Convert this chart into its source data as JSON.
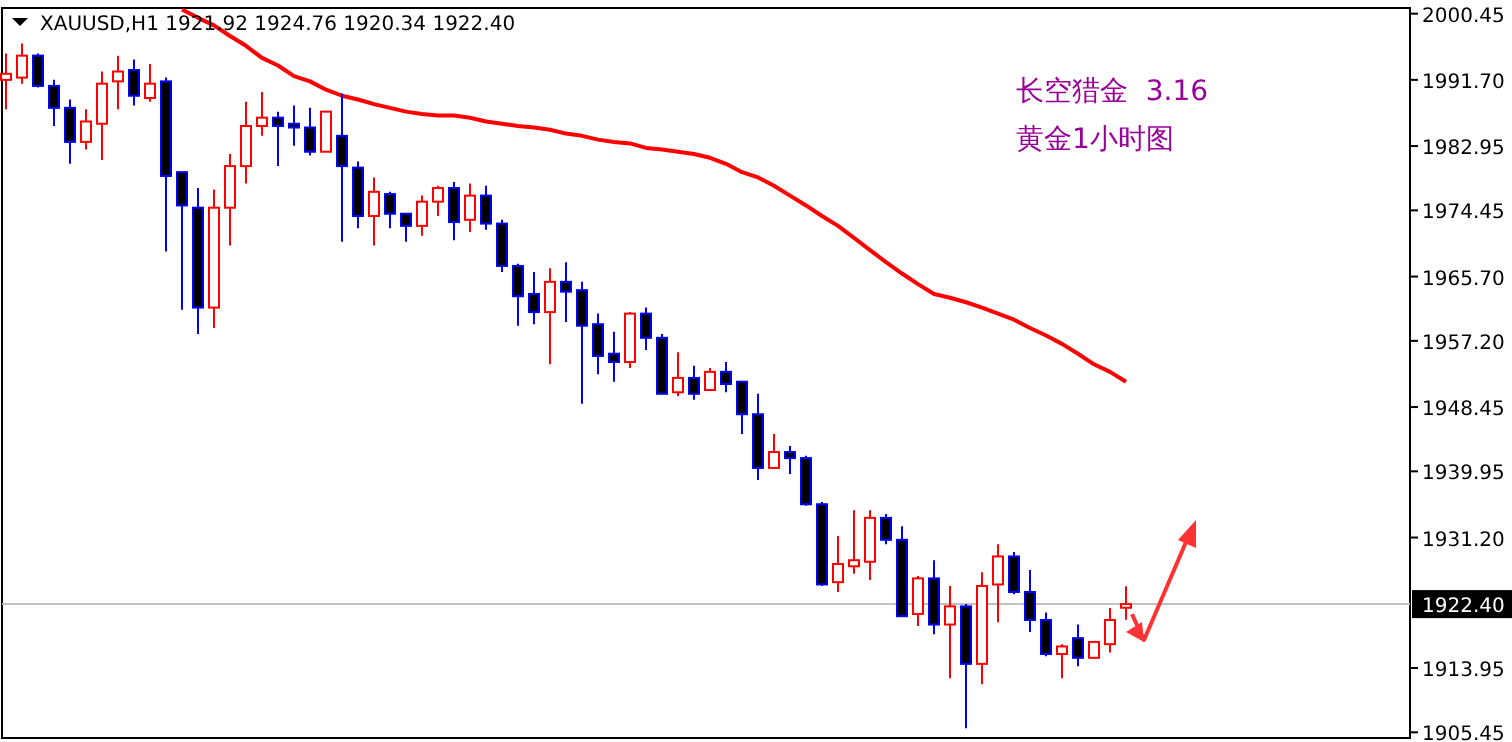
{
  "chart_data": {
    "type": "candlestick",
    "title": "XAUUSD,H1  1921.92 1924.76 1920.34 1922.40",
    "annotations": [
      "长空猎金  3.16",
      "黄金1小时图"
    ],
    "categories": [
      null,
      null,
      null,
      null,
      null,
      null,
      null,
      null,
      null,
      null,
      null,
      null,
      null,
      null,
      null,
      null,
      null,
      null,
      null,
      null,
      null,
      null,
      null,
      null,
      null,
      null,
      null,
      null,
      null,
      null,
      null,
      null,
      null,
      null,
      null,
      null,
      null,
      null,
      null,
      null,
      null,
      null,
      null,
      null,
      null,
      null,
      null,
      null,
      null,
      null,
      null,
      null,
      null,
      null,
      null,
      null,
      null,
      null,
      null,
      null,
      null,
      null,
      null,
      null,
      null,
      null,
      null,
      null,
      null,
      null,
      null
    ],
    "ohlc": [
      [
        1991.7,
        1995.2,
        1987.8,
        1992.5
      ],
      [
        1992.0,
        1996.5,
        1991.2,
        1994.9
      ],
      [
        1994.9,
        1995.2,
        1990.7,
        1990.9
      ],
      [
        1990.9,
        1991.7,
        1985.6,
        1988.0
      ],
      [
        1988.0,
        1989.1,
        1980.6,
        1983.5
      ],
      [
        1983.5,
        1987.8,
        1982.5,
        1986.2
      ],
      [
        1985.9,
        1992.8,
        1981.1,
        1991.2
      ],
      [
        1991.5,
        1994.9,
        1987.8,
        1992.8
      ],
      [
        1993.0,
        1994.4,
        1988.3,
        1989.6
      ],
      [
        1989.3,
        1993.8,
        1988.8,
        1991.2
      ],
      [
        1991.5,
        1992.0,
        1969.0,
        1979.0
      ],
      [
        1979.5,
        1979.5,
        1961.3,
        1975.1
      ],
      [
        1974.8,
        1977.4,
        1958.1,
        1961.6
      ],
      [
        1961.6,
        1977.2,
        1958.9,
        1974.8
      ],
      [
        1974.8,
        1981.9,
        1969.8,
        1980.3
      ],
      [
        1980.3,
        1988.8,
        1978.0,
        1985.6
      ],
      [
        1985.6,
        1990.1,
        1984.3,
        1986.7
      ],
      [
        1986.7,
        1987.5,
        1980.3,
        1985.6
      ],
      [
        1985.9,
        1988.3,
        1983.0,
        1985.4
      ],
      [
        1985.4,
        1988.0,
        1981.7,
        1982.2
      ],
      [
        1982.2,
        1987.5,
        1982.2,
        1987.5
      ],
      [
        1984.3,
        1989.9,
        1970.3,
        1980.3
      ],
      [
        1980.1,
        1980.9,
        1972.1,
        1973.7
      ],
      [
        1973.7,
        1978.8,
        1969.8,
        1976.9
      ],
      [
        1976.6,
        1976.9,
        1972.1,
        1974.0
      ],
      [
        1974.0,
        1974.0,
        1970.3,
        1972.4
      ],
      [
        1972.4,
        1976.4,
        1971.1,
        1975.6
      ],
      [
        1975.6,
        1977.7,
        1973.7,
        1977.4
      ],
      [
        1977.4,
        1978.2,
        1970.5,
        1972.9
      ],
      [
        1973.2,
        1978.0,
        1971.6,
        1976.4
      ],
      [
        1976.4,
        1977.7,
        1971.9,
        1972.7
      ],
      [
        1972.7,
        1973.2,
        1966.3,
        1967.1
      ],
      [
        1967.1,
        1967.4,
        1959.2,
        1963.1
      ],
      [
        1963.4,
        1966.3,
        1959.4,
        1961.0
      ],
      [
        1961.0,
        1966.8,
        1954.1,
        1965.0
      ],
      [
        1965.0,
        1967.6,
        1959.7,
        1963.7
      ],
      [
        1963.9,
        1965.0,
        1948.9,
        1959.2
      ],
      [
        1959.4,
        1960.8,
        1952.8,
        1955.2
      ],
      [
        1955.5,
        1958.4,
        1951.8,
        1954.4
      ],
      [
        1954.4,
        1961.0,
        1953.6,
        1960.8
      ],
      [
        1960.8,
        1961.6,
        1956.0,
        1957.6
      ],
      [
        1957.6,
        1958.1,
        1950.2,
        1950.2
      ],
      [
        1950.4,
        1955.7,
        1949.9,
        1952.3
      ],
      [
        1952.3,
        1953.9,
        1949.4,
        1950.2
      ],
      [
        1950.7,
        1953.6,
        1950.7,
        1953.1
      ],
      [
        1953.1,
        1954.4,
        1950.4,
        1951.5
      ],
      [
        1951.8,
        1951.8,
        1944.9,
        1947.5
      ],
      [
        1947.5,
        1950.2,
        1938.8,
        1940.4
      ],
      [
        1940.4,
        1944.9,
        1940.4,
        1942.5
      ],
      [
        1942.5,
        1943.3,
        1939.6,
        1941.7
      ],
      [
        1941.7,
        1942.0,
        1935.4,
        1935.6
      ],
      [
        1935.6,
        1935.9,
        1924.8,
        1925.0
      ],
      [
        1925.3,
        1931.4,
        1924.0,
        1927.7
      ],
      [
        1927.4,
        1934.8,
        1926.4,
        1928.2
      ],
      [
        1928.0,
        1934.8,
        1925.6,
        1933.8
      ],
      [
        1933.8,
        1934.3,
        1930.3,
        1930.9
      ],
      [
        1930.9,
        1932.7,
        1920.8,
        1920.8
      ],
      [
        1921.1,
        1926.1,
        1919.5,
        1925.8
      ],
      [
        1925.8,
        1928.2,
        1918.4,
        1919.7
      ],
      [
        1919.7,
        1924.8,
        1912.6,
        1922.1
      ],
      [
        1922.1,
        1922.4,
        1906.0,
        1914.5
      ],
      [
        1914.5,
        1926.6,
        1911.8,
        1924.8
      ],
      [
        1925.0,
        1930.3,
        1920.0,
        1928.7
      ],
      [
        1928.7,
        1929.3,
        1923.7,
        1924.0
      ],
      [
        1924.0,
        1926.9,
        1918.7,
        1920.3
      ],
      [
        1920.3,
        1921.3,
        1915.5,
        1915.8
      ],
      [
        1915.8,
        1917.1,
        1912.6,
        1916.8
      ],
      [
        1917.9,
        1919.7,
        1914.2,
        1915.3
      ],
      [
        1915.3,
        1917.4,
        1915.3,
        1917.4
      ],
      [
        1917.1,
        1921.9,
        1916.0,
        1920.3
      ],
      [
        1921.92,
        1924.76,
        1920.34,
        1922.4
      ]
    ],
    "colors": [
      "#ff0000",
      "#ff0000",
      "#0000ff",
      "#0000ff",
      "#0000ff",
      "#ff0000",
      "#ff0000",
      "#ff0000",
      "#0000ff",
      "#ff0000",
      "#0000ff",
      "#0000ff",
      "#0000ff",
      "#ff0000",
      "#ff0000",
      "#ff0000",
      "#ff0000",
      "#0000ff",
      "#0000ff",
      "#0000ff",
      "#ff0000",
      "#0000ff",
      "#0000ff",
      "#ff0000",
      "#0000ff",
      "#0000ff",
      "#ff0000",
      "#ff0000",
      "#0000ff",
      "#ff0000",
      "#0000ff",
      "#0000ff",
      "#0000ff",
      "#0000ff",
      "#ff0000",
      "#0000ff",
      "#0000ff",
      "#0000ff",
      "#0000ff",
      "#ff0000",
      "#0000ff",
      "#0000ff",
      "#ff0000",
      "#0000ff",
      "#ff0000",
      "#0000ff",
      "#0000ff",
      "#0000ff",
      "#ff0000",
      "#0000ff",
      "#0000ff",
      "#0000ff",
      "#ff0000",
      "#ff0000",
      "#ff0000",
      "#0000ff",
      "#0000ff",
      "#ff0000",
      "#0000ff",
      "#ff0000",
      "#0000ff",
      "#ff0000",
      "#ff0000",
      "#0000ff",
      "#0000ff",
      "#0000ff",
      "#ff0000",
      "#0000ff",
      "#ff0000",
      "#ff0000",
      "#ff0000"
    ],
    "series": [
      {
        "type": "line",
        "color": "#ff0000",
        "values": [
          null,
          null,
          null,
          null,
          null,
          null,
          null,
          null,
          null,
          null,
          null,
          2001.0,
          1999.9,
          1998.9,
          1997.5,
          1996.2,
          1994.6,
          1993.6,
          1992.2,
          1991.5,
          1990.4,
          1989.6,
          1989.1,
          1988.5,
          1988.0,
          1987.5,
          1987.2,
          1987.0,
          1987.0,
          1986.7,
          1986.2,
          1985.9,
          1985.6,
          1985.4,
          1985.1,
          1984.6,
          1984.3,
          1983.8,
          1983.5,
          1983.3,
          1982.7,
          1982.5,
          1982.2,
          1981.9,
          1981.4,
          1980.6,
          1979.5,
          1978.8,
          1977.7,
          1976.4,
          1975.1,
          1973.7,
          1972.4,
          1970.8,
          1969.2,
          1967.6,
          1966.1,
          1964.7,
          1963.4,
          1962.9,
          1962.3,
          1961.6,
          1960.8,
          1960.0,
          1958.9,
          1957.9,
          1956.8,
          1955.5,
          1954.1,
          1953.1,
          1951.8
        ]
      }
    ],
    "ylim": [
      1904.7,
      2001.2
    ],
    "yticks": [
      {
        "value": 2000.45,
        "label": "2000.45"
      },
      {
        "value": 1991.7,
        "label": "1991.70"
      },
      {
        "value": 1982.95,
        "label": "1982.95"
      },
      {
        "value": 1974.45,
        "label": "1974.45"
      },
      {
        "value": 1965.7,
        "label": "1965.70"
      },
      {
        "value": 1957.2,
        "label": "1957.20"
      },
      {
        "value": 1948.45,
        "label": "1948.45"
      },
      {
        "value": 1939.95,
        "label": "1939.95"
      },
      {
        "value": 1931.2,
        "label": "1931.20"
      },
      {
        "value": 1913.95,
        "label": "1913.95"
      },
      {
        "value": 1905.45,
        "label": "1905.45"
      }
    ],
    "ref_lines": [
      {
        "axis": "y",
        "value": 1922.4,
        "label": "1922.40",
        "color": "#c0c0c0"
      }
    ],
    "tick_labels": "y",
    "grid": false
  }
}
